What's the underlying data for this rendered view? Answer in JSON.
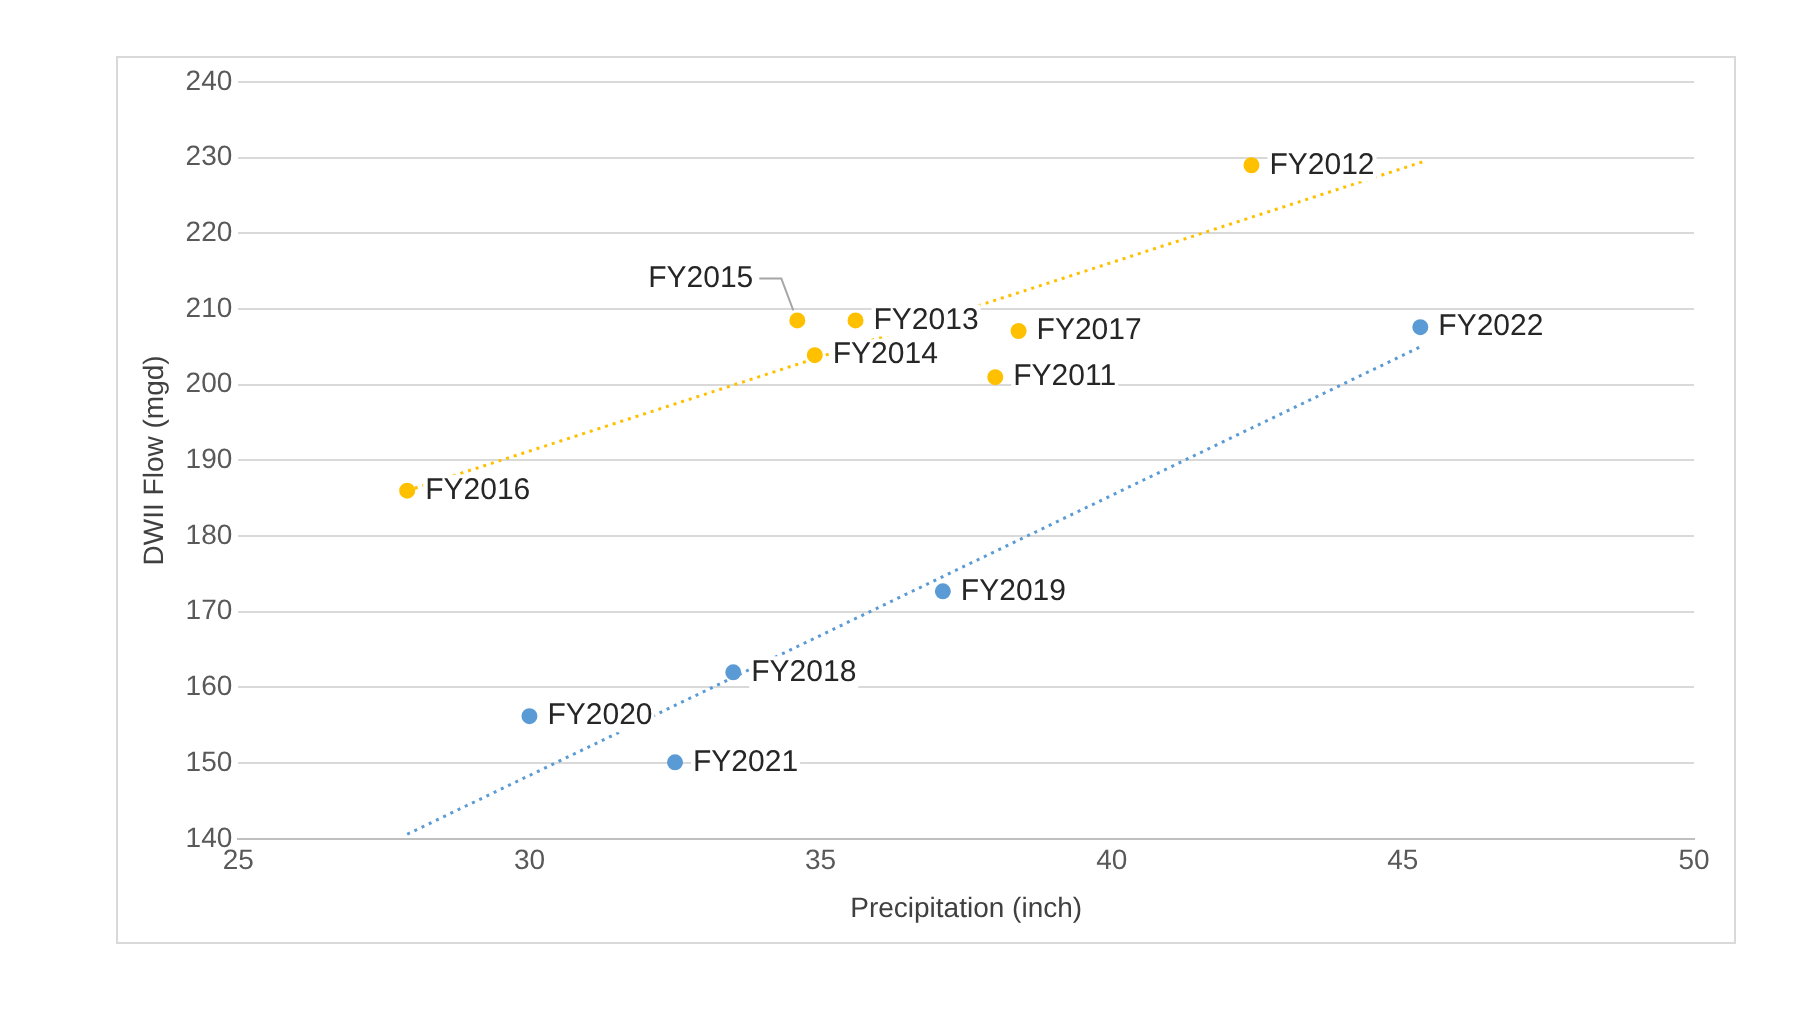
{
  "chart_data": {
    "type": "scatter",
    "xlabel": "Precipitation (inch)",
    "ylabel": "DWII Flow (mgd)",
    "xlim": [
      25,
      50
    ],
    "xticks": [
      25,
      30,
      35,
      40,
      45,
      50
    ],
    "ylim": [
      140,
      240
    ],
    "yticks": [
      140,
      150,
      160,
      170,
      180,
      190,
      200,
      210,
      220,
      230,
      240
    ],
    "grid": "y",
    "legend": false,
    "marker": "circle",
    "series": [
      {
        "type": "scatter",
        "color": "#ffc000",
        "x": [
          38.0,
          42.4,
          35.6,
          34.9,
          34.6,
          27.9,
          38.4
        ],
        "values": [
          201,
          229,
          208.5,
          203.9,
          208.5,
          186,
          207.1
        ]
      },
      {
        "type": "scatter",
        "color": "#5b9bd5",
        "x": [
          33.5,
          37.1,
          30.0,
          32.5,
          45.3
        ],
        "values": [
          162,
          172.7,
          156.2,
          150.1,
          207.6
        ]
      },
      {
        "type": "line",
        "color": "#ffc000",
        "line_style": "dotted",
        "marker": "none",
        "x": [
          27.9,
          45.4
        ],
        "values": [
          186,
          229.6
        ]
      },
      {
        "type": "line",
        "color": "#5b9bd5",
        "line_style": "dotted",
        "marker": "none",
        "x": [
          27.9,
          45.3
        ],
        "values": [
          140.6,
          205.0
        ]
      }
    ],
    "annotations": [
      {
        "text": "FY2011",
        "x": 38.0,
        "y": 201
      },
      {
        "text": "FY2012",
        "x": 42.4,
        "y": 229
      },
      {
        "text": "FY2013",
        "x": 35.6,
        "y": 208.5
      },
      {
        "text": "FY2014",
        "x": 34.9,
        "y": 203.9
      },
      {
        "text": "FY2015",
        "x": 34.6,
        "y": 208.5
      },
      {
        "text": "FY2016",
        "x": 27.9,
        "y": 186
      },
      {
        "text": "FY2017",
        "x": 38.4,
        "y": 207.1
      },
      {
        "text": "FY2018",
        "x": 33.5,
        "y": 162
      },
      {
        "text": "FY2019",
        "x": 37.1,
        "y": 172.7
      },
      {
        "text": "FY2020",
        "x": 30.0,
        "y": 156.2
      },
      {
        "text": "FY2021",
        "x": 32.5,
        "y": 150.1
      },
      {
        "text": "FY2022",
        "x": 45.3,
        "y": 207.6
      }
    ]
  }
}
